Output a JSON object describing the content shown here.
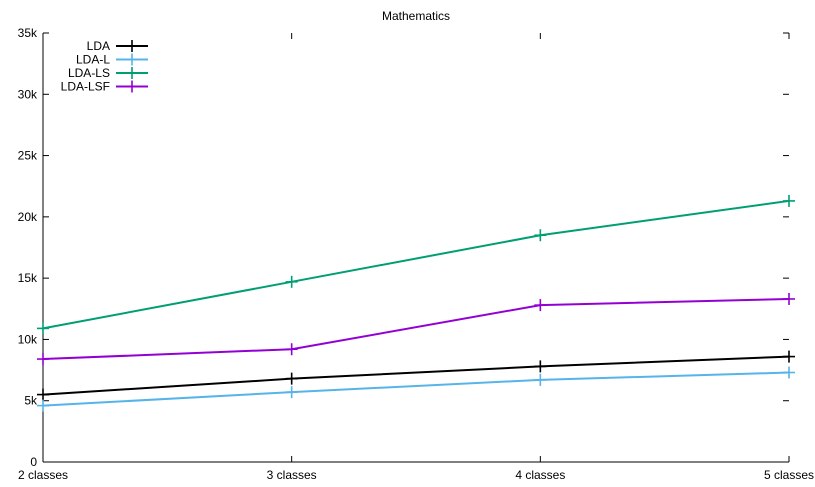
{
  "chart_data": {
    "type": "line",
    "title": "Mathematics",
    "xlabel": "",
    "ylabel": "",
    "categories": [
      "2 classes",
      "3 classes",
      "4 classes",
      "5 classes"
    ],
    "y_tick_labels": [
      "0",
      "5k",
      "10k",
      "15k",
      "20k",
      "25k",
      "30k",
      "35k"
    ],
    "ylim": [
      0,
      35000
    ],
    "grid": false,
    "legend_position": "top-left",
    "series": [
      {
        "name": "LDA",
        "color": "#000000",
        "values": [
          5500,
          6800,
          7800,
          8600
        ]
      },
      {
        "name": "LDA-L",
        "color": "#56b4e9",
        "values": [
          4600,
          5700,
          6700,
          7300
        ]
      },
      {
        "name": "LDA-LS",
        "color": "#009e73",
        "values": [
          10900,
          14700,
          18500,
          21300
        ]
      },
      {
        "name": "LDA-LSF",
        "color": "#9400d3",
        "values": [
          8400,
          9200,
          12800,
          13300
        ]
      }
    ]
  }
}
